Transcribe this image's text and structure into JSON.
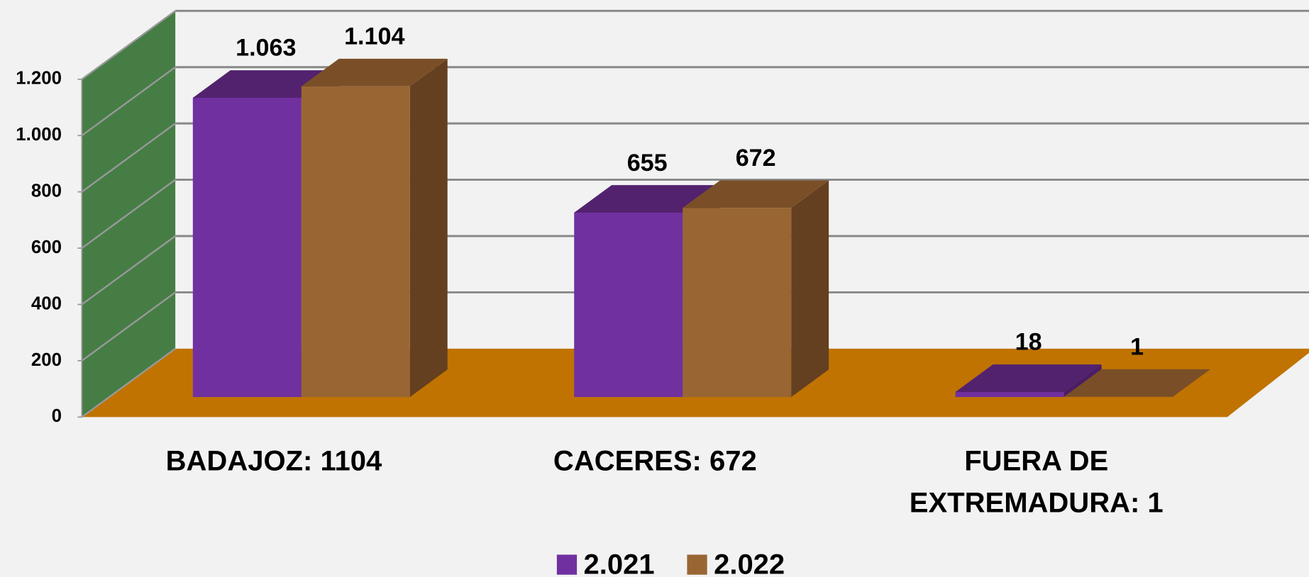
{
  "chart_data": {
    "type": "bar3d",
    "categories": [
      "BADAJOZ: 1104",
      "CACERES: 672",
      "FUERA DE EXTREMADURA: 1"
    ],
    "series": [
      {
        "name": "2.021",
        "color": "#7030a0",
        "values": [
          1063,
          655,
          18
        ],
        "value_labels": [
          "1.063",
          "655",
          "18"
        ]
      },
      {
        "name": "2.022",
        "color": "#996633",
        "values": [
          1104,
          672,
          1
        ],
        "value_labels": [
          "1.104",
          "672",
          "1"
        ]
      }
    ],
    "ylim": [
      0,
      1200
    ],
    "yticks": [
      0,
      200,
      400,
      600,
      800,
      {
        "value": 1000,
        "label": "1.000"
      },
      {
        "value": 1200,
        "label": "1.200"
      }
    ],
    "grid": true,
    "wall_color": "#467d45",
    "floor_color": "#c07300",
    "legend": "bottom"
  }
}
